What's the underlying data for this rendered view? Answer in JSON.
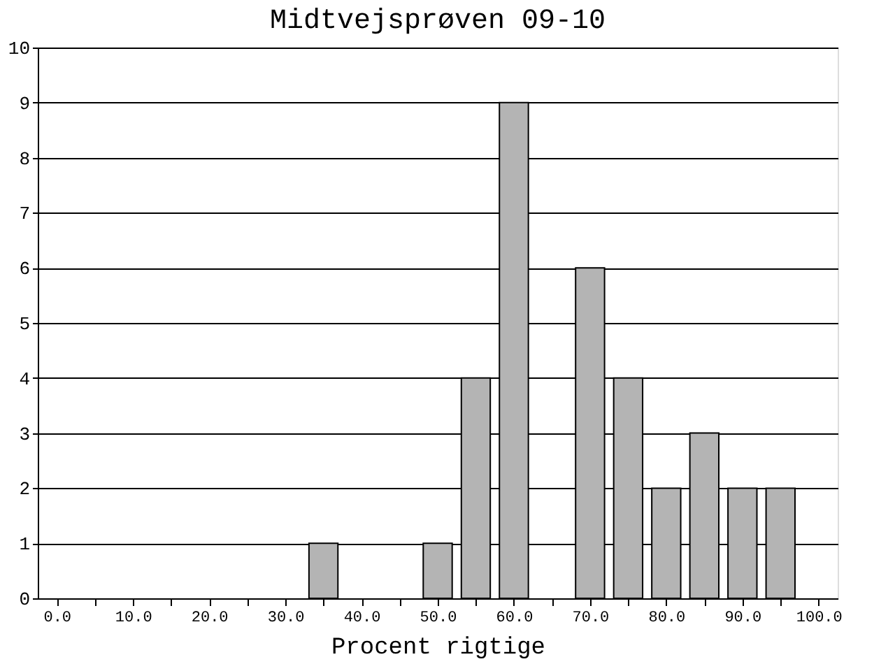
{
  "chart_data": {
    "type": "bar",
    "title": "Midtvejsprøven 09-10",
    "xlabel": "Procent rigtige",
    "x": [
      35,
      50,
      55,
      60,
      70,
      75,
      80,
      85,
      90,
      95
    ],
    "values": [
      1,
      1,
      4,
      9,
      6,
      4,
      2,
      3,
      2,
      2
    ],
    "color": "#b4b4b4",
    "xlim": [
      -2.5,
      102.5
    ],
    "xticks": [
      {
        "value": 0,
        "label": "0.0"
      },
      {
        "value": 5,
        "label": null
      },
      {
        "value": 10,
        "label": "10.0"
      },
      {
        "value": 15,
        "label": null
      },
      {
        "value": 20,
        "label": "20.0"
      },
      {
        "value": 25,
        "label": null
      },
      {
        "value": 30,
        "label": "30.0"
      },
      {
        "value": 35,
        "label": null
      },
      {
        "value": 40,
        "label": "40.0"
      },
      {
        "value": 45,
        "label": null
      },
      {
        "value": 50,
        "label": "50.0"
      },
      {
        "value": 55,
        "label": null
      },
      {
        "value": 60,
        "label": "60.0"
      },
      {
        "value": 65,
        "label": null
      },
      {
        "value": 70,
        "label": "70.0"
      },
      {
        "value": 75,
        "label": null
      },
      {
        "value": 80,
        "label": "80.0"
      },
      {
        "value": 85,
        "label": null
      },
      {
        "value": 90,
        "label": "90.0"
      },
      {
        "value": 95,
        "label": null
      },
      {
        "value": 100,
        "label": "100.0"
      }
    ],
    "ylim": [
      0,
      10
    ],
    "yticks": [
      0,
      1,
      2,
      3,
      4,
      5,
      6,
      7,
      8,
      9,
      10
    ],
    "grid": "y"
  }
}
